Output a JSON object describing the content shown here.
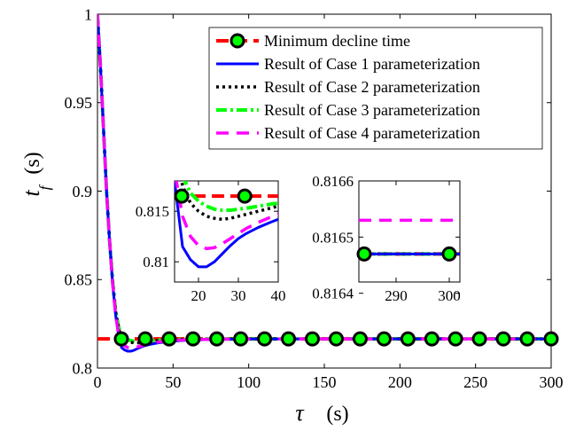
{
  "chart_data": [
    {
      "id": "main",
      "type": "line",
      "xlabel": "τ (s)",
      "ylabel": "t_f (s)",
      "xlim": [
        0,
        300
      ],
      "ylim": [
        0.8,
        1.0
      ],
      "xticks": [
        0,
        50,
        100,
        150,
        200,
        250,
        300
      ],
      "yticks": [
        0.8,
        0.85,
        0.9,
        0.95,
        1.0
      ],
      "xtick_labels": [
        "0",
        "50",
        "100",
        "150",
        "200",
        "250",
        "300"
      ],
      "ytick_labels": [
        "0.8",
        "0.85",
        "0.9",
        "0.95",
        "1"
      ],
      "grid": false,
      "legend_position": "top-right",
      "series": [
        {
          "name": "Minimum decline time",
          "style": "dashed-with-markers",
          "color": "#ff0000",
          "marker_face": "#00ff00",
          "marker_edge": "#000000",
          "x": [
            0,
            300
          ],
          "y": [
            0.8165,
            0.8165
          ],
          "marker_x": [
            15.8,
            31.6,
            47.4,
            63.2,
            78.9,
            94.7,
            110.5,
            126.3,
            142.1,
            157.9,
            173.7,
            189.5,
            205.3,
            221.1,
            236.8,
            252.6,
            268.4,
            284.2,
            300
          ]
        },
        {
          "name": "Result of Case 1 parameterization",
          "style": "solid",
          "color": "#0000ff",
          "x": [
            0,
            2,
            4,
            6,
            8,
            10,
            12,
            14,
            16,
            18,
            20,
            22,
            24,
            26,
            28,
            30,
            32,
            35,
            38,
            40,
            45,
            50,
            60,
            80,
            100,
            150,
            200,
            250,
            300
          ],
          "y": [
            1.0,
            0.97,
            0.935,
            0.9,
            0.872,
            0.848,
            0.83,
            0.818,
            0.8115,
            0.8102,
            0.8095,
            0.8095,
            0.81,
            0.8108,
            0.8116,
            0.8123,
            0.8128,
            0.8134,
            0.8139,
            0.8142,
            0.8148,
            0.8152,
            0.8158,
            0.8162,
            0.8164,
            0.8165,
            0.8165,
            0.8165,
            0.8165
          ]
        },
        {
          "name": "Result of Case 2 parameterization",
          "style": "dotted",
          "color": "#000000",
          "x": [
            0,
            2,
            4,
            6,
            8,
            10,
            12,
            14,
            16,
            18,
            20,
            22,
            24,
            26,
            28,
            30,
            32,
            35,
            38,
            40,
            45,
            50,
            60,
            80,
            100,
            150,
            200,
            250,
            300
          ],
          "y": [
            1.0,
            0.97,
            0.935,
            0.9,
            0.872,
            0.849,
            0.832,
            0.822,
            0.8175,
            0.8158,
            0.815,
            0.8145,
            0.8143,
            0.8142,
            0.8143,
            0.8145,
            0.8147,
            0.815,
            0.8153,
            0.8155,
            0.8158,
            0.816,
            0.8162,
            0.8164,
            0.8165,
            0.8165,
            0.8165,
            0.8165,
            0.8165
          ]
        },
        {
          "name": "Result of Case 3 parameterization",
          "style": "dash-dot",
          "color": "#00ff00",
          "x": [
            0,
            2,
            4,
            6,
            8,
            10,
            12,
            14,
            16,
            18,
            20,
            22,
            24,
            26,
            28,
            30,
            32,
            35,
            38,
            40,
            45,
            50,
            60,
            80,
            100,
            150,
            200,
            250,
            300
          ],
          "y": [
            1.0,
            0.97,
            0.935,
            0.9,
            0.872,
            0.849,
            0.832,
            0.823,
            0.8185,
            0.8168,
            0.816,
            0.8155,
            0.8152,
            0.8151,
            0.8151,
            0.8152,
            0.8153,
            0.8155,
            0.8157,
            0.8158,
            0.816,
            0.8162,
            0.8163,
            0.8164,
            0.8165,
            0.8165,
            0.8165,
            0.8165,
            0.8165
          ]
        },
        {
          "name": "Result of Case 4 parameterization",
          "style": "dashed",
          "color": "#ff00ff",
          "x": [
            0,
            2,
            4,
            6,
            8,
            10,
            12,
            14,
            16,
            18,
            20,
            22,
            24,
            26,
            28,
            30,
            32,
            35,
            38,
            40,
            45,
            50,
            60,
            80,
            100,
            150,
            200,
            250,
            300
          ],
          "y": [
            1.0,
            0.97,
            0.935,
            0.9,
            0.872,
            0.848,
            0.83,
            0.819,
            0.8145,
            0.8125,
            0.8116,
            0.8113,
            0.8114,
            0.8118,
            0.8123,
            0.8128,
            0.8133,
            0.8139,
            0.8144,
            0.8147,
            0.8152,
            0.8156,
            0.816,
            0.8163,
            0.8165,
            0.8165,
            0.8165,
            0.8165,
            0.8165
          ]
        }
      ]
    },
    {
      "id": "inset-left",
      "type": "line",
      "xlim": [
        14,
        40
      ],
      "ylim": [
        0.808,
        0.818
      ],
      "xticks": [
        20,
        30,
        40
      ],
      "yticks": [
        0.81,
        0.815
      ],
      "xtick_labels": [
        "20",
        "30",
        "40"
      ],
      "ytick_labels": [
        "0.81",
        "0.815"
      ],
      "grid": false
    },
    {
      "id": "inset-right",
      "type": "line",
      "xlim": [
        283,
        302
      ],
      "ylim": [
        0.81642,
        0.8166
      ],
      "xticks": [
        290,
        300
      ],
      "yticks": [
        0.8164,
        0.8165,
        0.8166
      ],
      "xtick_labels": [
        "290",
        "300"
      ],
      "ytick_labels": [
        "0.8164",
        "0.8165",
        "0.8166"
      ],
      "grid": false,
      "series_values": {
        "Minimum decline time": [
          0.81647,
          0.81647
        ],
        "Result of Case 1 parameterization": [
          0.81647,
          0.81647
        ],
        "Result of Case 2 parameterization": [
          0.81647,
          0.81647
        ],
        "Result of Case 3 parameterization": [
          0.81647,
          0.81647
        ],
        "Result of Case 4 parameterization": [
          0.81653,
          0.81653
        ]
      },
      "marker_x": [
        284,
        300
      ]
    }
  ]
}
